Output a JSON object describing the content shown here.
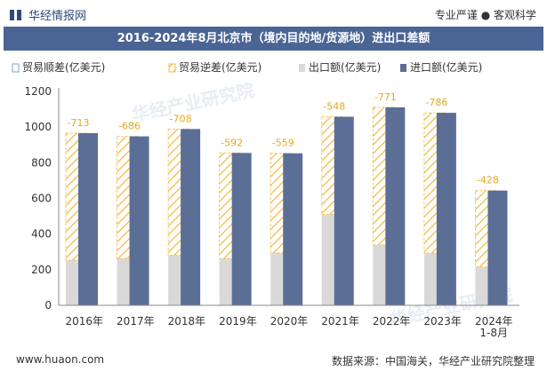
{
  "header": {
    "logo_text": "华经情报网",
    "tagline": "专业严谨 ● 客观科学"
  },
  "chart_data": {
    "type": "bar",
    "title": "2016-2024年8月北京市（境内目的地/货源地）进出口差额",
    "categories": [
      "2016年",
      "2017年",
      "2018年",
      "2019年",
      "2020年",
      "2021年",
      "2022年",
      "2023年",
      "2024年\n1-8月"
    ],
    "series": [
      {
        "name": "贸易顺差(亿美元)",
        "values": [
          null,
          null,
          null,
          null,
          null,
          null,
          null,
          null,
          null
        ],
        "color": "#8aa0c8"
      },
      {
        "name": "贸易逆差(亿美元)",
        "values": [
          -713,
          -686,
          -708,
          -592,
          -559,
          -548,
          -771,
          -786,
          -428
        ],
        "color": "#f5b942"
      },
      {
        "name": "出口额(亿美元)",
        "values": [
          253,
          262,
          281,
          263,
          294,
          510,
          340,
          294,
          216
        ],
        "color": "#d9d9d9"
      },
      {
        "name": "进口额(亿美元)",
        "values": [
          966,
          948,
          989,
          855,
          853,
          1058,
          1111,
          1080,
          644
        ],
        "color": "#5b6f96"
      }
    ],
    "ylim": [
      0,
      1200
    ],
    "yticks": [
      0,
      200,
      400,
      600,
      800,
      1000,
      1200
    ],
    "grid": false,
    "legend_position": "top-left"
  },
  "watermark": "华经产业研究院",
  "footer": {
    "website": "www.huaon.com",
    "source": "数据来源：中国海关，华经产业研究院整理"
  }
}
